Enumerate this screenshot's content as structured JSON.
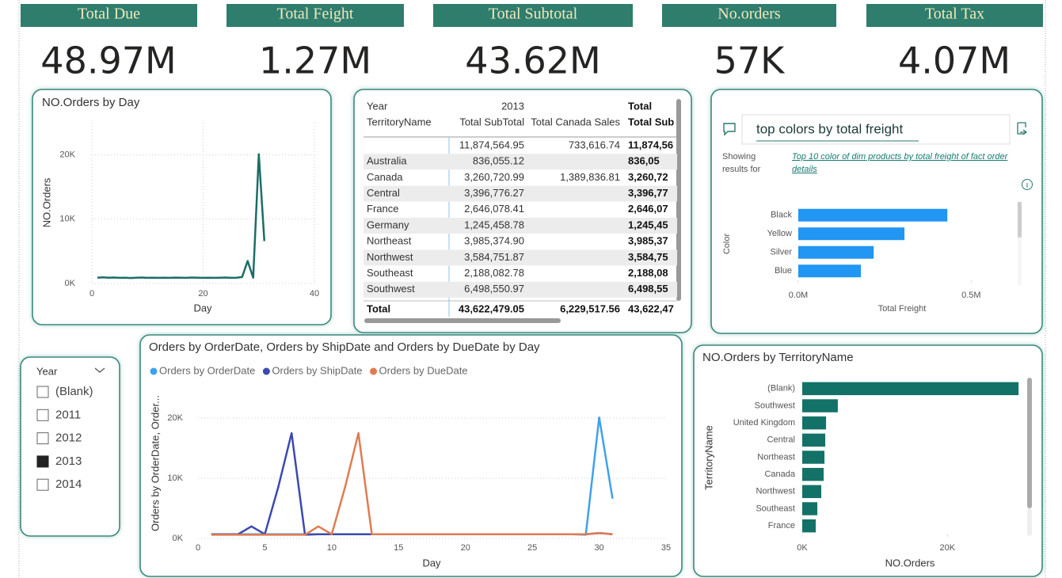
{
  "kpis": [
    {
      "title": "Total Due",
      "value": "48.97M"
    },
    {
      "title": "Total Feight",
      "value": "1.27M"
    },
    {
      "title": "Total Subtotal",
      "value": "43.62M"
    },
    {
      "title": "No.orders",
      "value": "57K"
    },
    {
      "title": "Total Tax",
      "value": "4.07M"
    }
  ],
  "table": {
    "header": [
      [
        "Year",
        "2013",
        null,
        "Total"
      ],
      [
        "TerritoryName",
        "Total SubTotal",
        "Total Canada Sales",
        "Total Sub"
      ]
    ],
    "rows": [
      [
        null,
        "11,874,564.95",
        "733,616.74",
        "11,874,56"
      ],
      [
        "Australia",
        "836,055.12",
        null,
        "836,05"
      ],
      [
        "Canada",
        "3,260,720.99",
        "1,389,836.81",
        "3,260,72"
      ],
      [
        "Central",
        "3,396,776.27",
        null,
        "3,396,77"
      ],
      [
        "France",
        "2,646,078.41",
        null,
        "2,646,07"
      ],
      [
        "Germany",
        "1,245,458.78",
        null,
        "1,245,45"
      ],
      [
        "Northeast",
        "3,985,374.90",
        null,
        "3,985,37"
      ],
      [
        "Northwest",
        "3,584,751.87",
        null,
        "3,584,75"
      ],
      [
        "Southeast",
        "2,188,082.78",
        null,
        "2,188,08"
      ],
      [
        "Southwest",
        "6,498,550.97",
        null,
        "6,498,55"
      ]
    ],
    "total": [
      "Total",
      "43,622,479.05",
      "6,229,517.56",
      "43,622,47"
    ]
  },
  "slicer": {
    "title": "Year",
    "items": [
      "(Blank)",
      "2011",
      "2012",
      "2013",
      "2014"
    ],
    "checked": [
      false,
      false,
      false,
      true,
      false
    ]
  },
  "qa": {
    "query": "top colors by total freight",
    "showing": "Showing results for",
    "interpretation": "Top 10 color of dim products by total freight of fact order details"
  },
  "chart_data": [
    {
      "type": "line",
      "title": "NO.Orders by Day",
      "x": [
        1,
        2,
        3,
        4,
        5,
        6,
        7,
        8,
        9,
        10,
        11,
        12,
        13,
        14,
        15,
        16,
        17,
        18,
        19,
        20,
        21,
        22,
        23,
        24,
        25,
        26,
        27,
        28,
        29,
        30,
        31
      ],
      "values": [
        900,
        950,
        900,
        920,
        880,
        900,
        850,
        900,
        920,
        880,
        900,
        870,
        900,
        880,
        910,
        900,
        880,
        920,
        900,
        870,
        900,
        880,
        900,
        920,
        880,
        900,
        1000,
        3500,
        900,
        20100,
        6600
      ],
      "color": "#1b6e66",
      "xlabel": "Day",
      "ylabel": "NO.Orders",
      "xlim": [
        0,
        40
      ],
      "xticks": [
        0,
        20,
        40
      ],
      "ylim": [
        0,
        25000
      ],
      "yticks": [
        {
          "value": 0,
          "label": "0K"
        },
        {
          "value": 10000,
          "label": "10K"
        },
        {
          "value": 20000,
          "label": "20K"
        }
      ],
      "grid": "both"
    },
    {
      "type": "hbar",
      "categories": [
        "Black",
        "Yellow",
        "Silver",
        "Blue"
      ],
      "values": [
        431000,
        307000,
        218000,
        181000
      ],
      "color": "#2196f3",
      "xlabel": "Total Freight",
      "ylabel": "Color",
      "xlim": [
        0,
        600000
      ],
      "xticks": [
        {
          "value": 0,
          "label": "0.0M"
        },
        {
          "value": 500000,
          "label": "0.5M"
        }
      ]
    },
    {
      "type": "line",
      "title": "Orders by OrderDate, Orders by ShipDate and Orders by DueDate by Day",
      "x": [
        1,
        2,
        3,
        4,
        5,
        6,
        7,
        8,
        9,
        10,
        11,
        12,
        13,
        14,
        15,
        16,
        17,
        18,
        19,
        20,
        21,
        22,
        23,
        24,
        25,
        26,
        27,
        28,
        29,
        30,
        31
      ],
      "series": [
        {
          "name": "Orders by OrderDate",
          "color": "#3fa1ee",
          "values": [
            700,
            700,
            700,
            700,
            700,
            700,
            700,
            700,
            700,
            700,
            700,
            700,
            700,
            700,
            700,
            700,
            700,
            700,
            700,
            700,
            700,
            700,
            700,
            700,
            700,
            700,
            700,
            700,
            600,
            20100,
            6600
          ]
        },
        {
          "name": "Orders by ShipDate",
          "color": "#3b49b0",
          "values": [
            700,
            700,
            700,
            2000,
            700,
            8500,
            17500,
            600,
            700,
            700,
            700,
            700,
            700,
            700,
            700,
            700,
            700,
            700,
            700,
            700,
            700,
            700,
            700,
            700,
            700,
            700,
            700,
            700,
            700,
            900,
            700
          ]
        },
        {
          "name": "Orders by DueDate",
          "color": "#e07b51",
          "values": [
            600,
            600,
            600,
            600,
            600,
            600,
            600,
            600,
            2000,
            700,
            8500,
            17500,
            700,
            700,
            700,
            700,
            700,
            700,
            700,
            700,
            700,
            700,
            700,
            700,
            700,
            700,
            700,
            700,
            700,
            900,
            700
          ]
        }
      ],
      "xlabel": "Day",
      "ylabel": "Orders by OrderDate, Order...",
      "xlim": [
        0,
        35
      ],
      "xticks": [
        0,
        5,
        10,
        15,
        20,
        25,
        30,
        35
      ],
      "ylim": [
        0,
        25000
      ],
      "yticks": [
        {
          "value": 0,
          "label": "0K"
        },
        {
          "value": 10000,
          "label": "10K"
        },
        {
          "value": 20000,
          "label": "20K"
        }
      ],
      "grid": "y",
      "legend": "top-left"
    },
    {
      "type": "hbar",
      "title": "NO.Orders by TerritoryName",
      "categories": [
        "(Blank)",
        "Southwest",
        "United Kingdom",
        "Central",
        "Northeast",
        "Canada",
        "Northwest",
        "Southeast",
        "France"
      ],
      "values": [
        29800,
        4900,
        3280,
        3170,
        3060,
        2950,
        2620,
        2080,
        1860
      ],
      "color": "#137268",
      "xlabel": "NO.Orders",
      "ylabel": "TerritoryName",
      "xlim": [
        0,
        30000
      ],
      "xticks": [
        {
          "value": 0,
          "label": "0K"
        },
        {
          "value": 20000,
          "label": "20K"
        }
      ]
    }
  ]
}
